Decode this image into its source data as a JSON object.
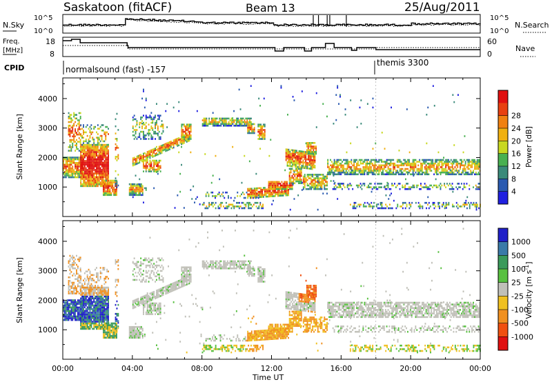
{
  "header": {
    "title": "Saskatoon (fitACF)",
    "beam": "Beam 13",
    "date": "25/Aug/2011"
  },
  "noise_panel": {
    "left_label": "N.Sky",
    "left_ticks": [
      "10^5",
      "10^0"
    ],
    "right_label": "N.Search",
    "right_ticks": [
      "10^5",
      "10^0"
    ]
  },
  "freq_panel": {
    "left_label_line1": "Freq.",
    "left_label_line2": "[MHz]",
    "left_ticks": [
      "18",
      "8"
    ],
    "right_label": "Nave",
    "right_ticks": [
      "60",
      "0"
    ]
  },
  "cpid": {
    "label": "CPID",
    "programs": [
      {
        "name": "normalsound (fast) -157",
        "start_hour": 0
      },
      {
        "name": "themis 3300",
        "start_hour": 18
      }
    ]
  },
  "chart_data": [
    {
      "type": "heatmap",
      "name": "power",
      "ylabel": "Slant Range [km]",
      "yticks": [
        "1000",
        "2000",
        "3000",
        "4000"
      ],
      "ylim": [
        0,
        4700
      ],
      "xlim_hours": [
        0,
        24
      ],
      "colorbar": {
        "label": "Power [dB]",
        "ticks": [
          "4",
          "8",
          "12",
          "16",
          "20",
          "24",
          "28"
        ],
        "colors": [
          "#2020e0",
          "#2a5ab0",
          "#3a8a7a",
          "#48b050",
          "#c8d820",
          "#f0b010",
          "#f08010",
          "#e84010",
          "#e01010"
        ]
      }
    },
    {
      "type": "heatmap",
      "name": "velocity",
      "ylabel": "Slant Range [km]",
      "yticks": [
        "1000",
        "2000",
        "3000",
        "4000"
      ],
      "ylim": [
        0,
        4700
      ],
      "xlim_hours": [
        0,
        24
      ],
      "colorbar": {
        "label": "Velocity [m s",
        "label_sup": "-1",
        "label_end": "]",
        "ticks": [
          "1000",
          "500",
          "100",
          "25",
          "-25",
          "-100",
          "-500",
          "-1000"
        ],
        "colors": [
          "#2020c8",
          "#3a7aa8",
          "#3a9a5a",
          "#58c040",
          "#c0c0b8",
          "#f0c020",
          "#f09020",
          "#f05010",
          "#e01010"
        ]
      }
    }
  ],
  "time_axis": {
    "label": "Time UT",
    "ticks": [
      "00:00",
      "04:00",
      "08:00",
      "12:00",
      "16:00",
      "20:00",
      "00:00"
    ]
  }
}
